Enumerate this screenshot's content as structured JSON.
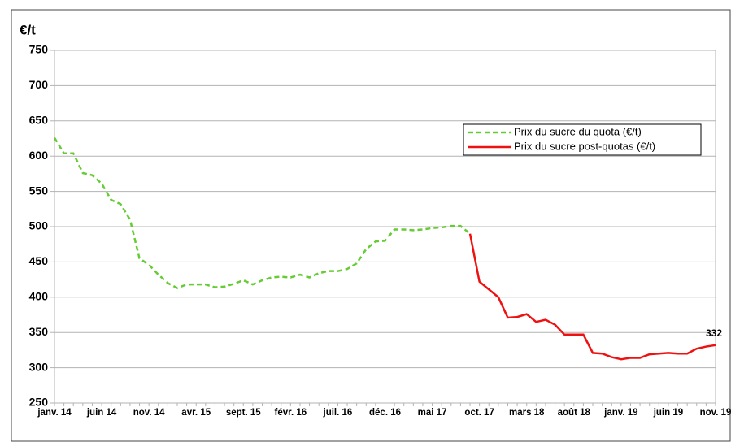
{
  "chart_data": {
    "type": "line",
    "y_label": "€/t",
    "categories": [
      "janv. 14",
      null,
      null,
      null,
      null,
      "juin 14",
      null,
      null,
      null,
      null,
      "nov. 14",
      null,
      null,
      null,
      null,
      "avr. 15",
      null,
      null,
      null,
      null,
      "sept. 15",
      null,
      null,
      null,
      null,
      "févr. 16",
      null,
      null,
      null,
      null,
      "juil. 16",
      null,
      null,
      null,
      null,
      "déc. 16",
      null,
      null,
      null,
      null,
      "mai 17",
      null,
      null,
      null,
      null,
      "oct. 17",
      null,
      null,
      null,
      null,
      "mars 18",
      null,
      null,
      null,
      null,
      "août 18",
      null,
      null,
      null,
      null,
      "janv. 19",
      null,
      null,
      null,
      null,
      "juin 19",
      null,
      null,
      null,
      null,
      "nov. 19"
    ],
    "series": [
      {
        "name": "Prix du sucre du quota (€/t)",
        "color": "#66cc33",
        "dash": true,
        "values": [
          626,
          604,
          604,
          576,
          573,
          561,
          538,
          532,
          510,
          455,
          446,
          432,
          420,
          413,
          418,
          418,
          418,
          414,
          415,
          419,
          424,
          418,
          424,
          428,
          429,
          428,
          432,
          428,
          434,
          437,
          437,
          440,
          448,
          468,
          479,
          480,
          496,
          496,
          495,
          496,
          498,
          499,
          501,
          501,
          490,
          null,
          null,
          null,
          null,
          null,
          null,
          null,
          null,
          null,
          null,
          null,
          null,
          null,
          null,
          null,
          null,
          null,
          null,
          null,
          null,
          null,
          null,
          null,
          null,
          null,
          null
        ]
      },
      {
        "name": "Prix du sucre post-quotas (€/t)",
        "color": "#ee1111",
        "dash": false,
        "values": [
          null,
          null,
          null,
          null,
          null,
          null,
          null,
          null,
          null,
          null,
          null,
          null,
          null,
          null,
          null,
          null,
          null,
          null,
          null,
          null,
          null,
          null,
          null,
          null,
          null,
          null,
          null,
          null,
          null,
          null,
          null,
          null,
          null,
          null,
          null,
          null,
          null,
          null,
          null,
          null,
          null,
          null,
          null,
          null,
          490,
          422,
          411,
          400,
          371,
          372,
          376,
          365,
          368,
          361,
          347,
          347,
          347,
          321,
          320,
          315,
          312,
          314,
          314,
          319,
          320,
          321,
          320,
          320,
          327,
          330,
          332
        ]
      }
    ],
    "ylim": [
      250,
      750
    ],
    "yticks": [
      250,
      300,
      350,
      400,
      450,
      500,
      550,
      600,
      650,
      700,
      750
    ],
    "grid": true,
    "legend": "upper right"
  }
}
